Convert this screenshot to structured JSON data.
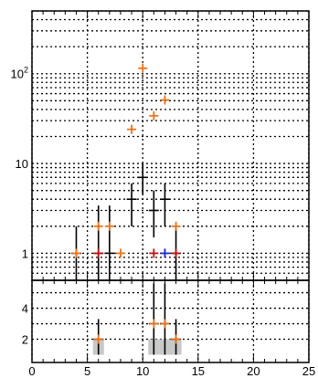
{
  "chart_data": {
    "type": "scatter",
    "title": "",
    "xlabel": "",
    "ylabel": "",
    "grid": true,
    "legend": "none",
    "colors": {
      "primary": "#000000",
      "secondary": "#e8731c",
      "tertiary": "#1a2fd1",
      "quaternary": "#c01010",
      "band": "#c8c8c8"
    },
    "upper": {
      "yscale": "log",
      "xlim": [
        0,
        25
      ],
      "ylim": [
        0.5,
        500
      ],
      "xticks": [
        0,
        5,
        10,
        15,
        20,
        25
      ],
      "yticks": [
        1,
        10,
        100
      ],
      "ytick_labels": [
        {
          "value": 1,
          "base": "1",
          "exp": ""
        },
        {
          "value": 10,
          "base": "10",
          "exp": ""
        },
        {
          "value": 100,
          "base": "10",
          "exp": "2"
        }
      ],
      "series": [
        {
          "type": "errorbar",
          "points": [
            {
              "x": 4,
              "y": 1,
              "ylo": 0.5,
              "yhi": 2
            },
            {
              "x": 6,
              "y": 1,
              "ylo": 0.5,
              "yhi": 3.4
            },
            {
              "x": 7,
              "y": 1,
              "ylo": 0.5,
              "yhi": 3.4
            },
            {
              "x": 9,
              "y": 4,
              "ylo": 2,
              "yhi": 6
            },
            {
              "x": 10,
              "y": 7,
              "ylo": 4.5,
              "yhi": 10
            },
            {
              "x": 11,
              "y": 3,
              "ylo": 1.5,
              "yhi": 5
            },
            {
              "x": 12,
              "y": 4,
              "ylo": 2,
              "yhi": 6
            },
            {
              "x": 13,
              "y": 1,
              "ylo": 0.5,
              "yhi": 2
            }
          ]
        },
        {
          "type": "markers",
          "points": [
            {
              "x": 4,
              "y": 1
            },
            {
              "x": 6,
              "y": 2
            },
            {
              "x": 7,
              "y": 2
            },
            {
              "x": 9,
              "y": 24
            },
            {
              "x": 10,
              "y": 115
            },
            {
              "x": 11,
              "y": 34
            },
            {
              "x": 12,
              "y": 51
            },
            {
              "x": 8,
              "y": 1
            },
            {
              "x": 12,
              "y": 1
            },
            {
              "x": 13,
              "y": 2
            }
          ]
        },
        {
          "type": "markers",
          "points": [
            {
              "x": 12,
              "y": 1
            }
          ]
        },
        {
          "type": "markers",
          "points": [
            {
              "x": 6,
              "y": 1
            },
            {
              "x": 11,
              "y": 1
            },
            {
              "x": 13,
              "y": 1
            }
          ]
        }
      ]
    },
    "lower": {
      "yscale": "linear",
      "xlim": [
        0,
        25
      ],
      "ylim": [
        0.5,
        5.8
      ],
      "xticks": [
        0,
        5,
        10,
        15,
        20,
        25
      ],
      "yticks": [
        2,
        4
      ],
      "bands": [
        {
          "x": 6,
          "ylo": 1,
          "yhi": 2
        },
        {
          "x": 11,
          "ylo": 1,
          "yhi": 2
        },
        {
          "x": 12,
          "ylo": 1,
          "yhi": 2
        },
        {
          "x": 13,
          "ylo": 1,
          "yhi": 2
        }
      ],
      "series": [
        {
          "type": "errorbar",
          "points": [
            {
              "x": 6,
              "y": 2,
              "ylo": 1,
              "yhi": 3.3
            },
            {
              "x": 11,
              "y": 3,
              "ylo": 1,
              "yhi": 5.6
            },
            {
              "x": 12,
              "y": 3,
              "ylo": 1,
              "yhi": 5.6
            },
            {
              "x": 13,
              "y": 2,
              "ylo": 1,
              "yhi": 3.3
            }
          ]
        },
        {
          "type": "markers",
          "points": [
            {
              "x": 6,
              "y": 2
            },
            {
              "x": 11,
              "y": 3
            },
            {
              "x": 12,
              "y": 3
            },
            {
              "x": 13,
              "y": 2
            }
          ]
        }
      ]
    }
  }
}
